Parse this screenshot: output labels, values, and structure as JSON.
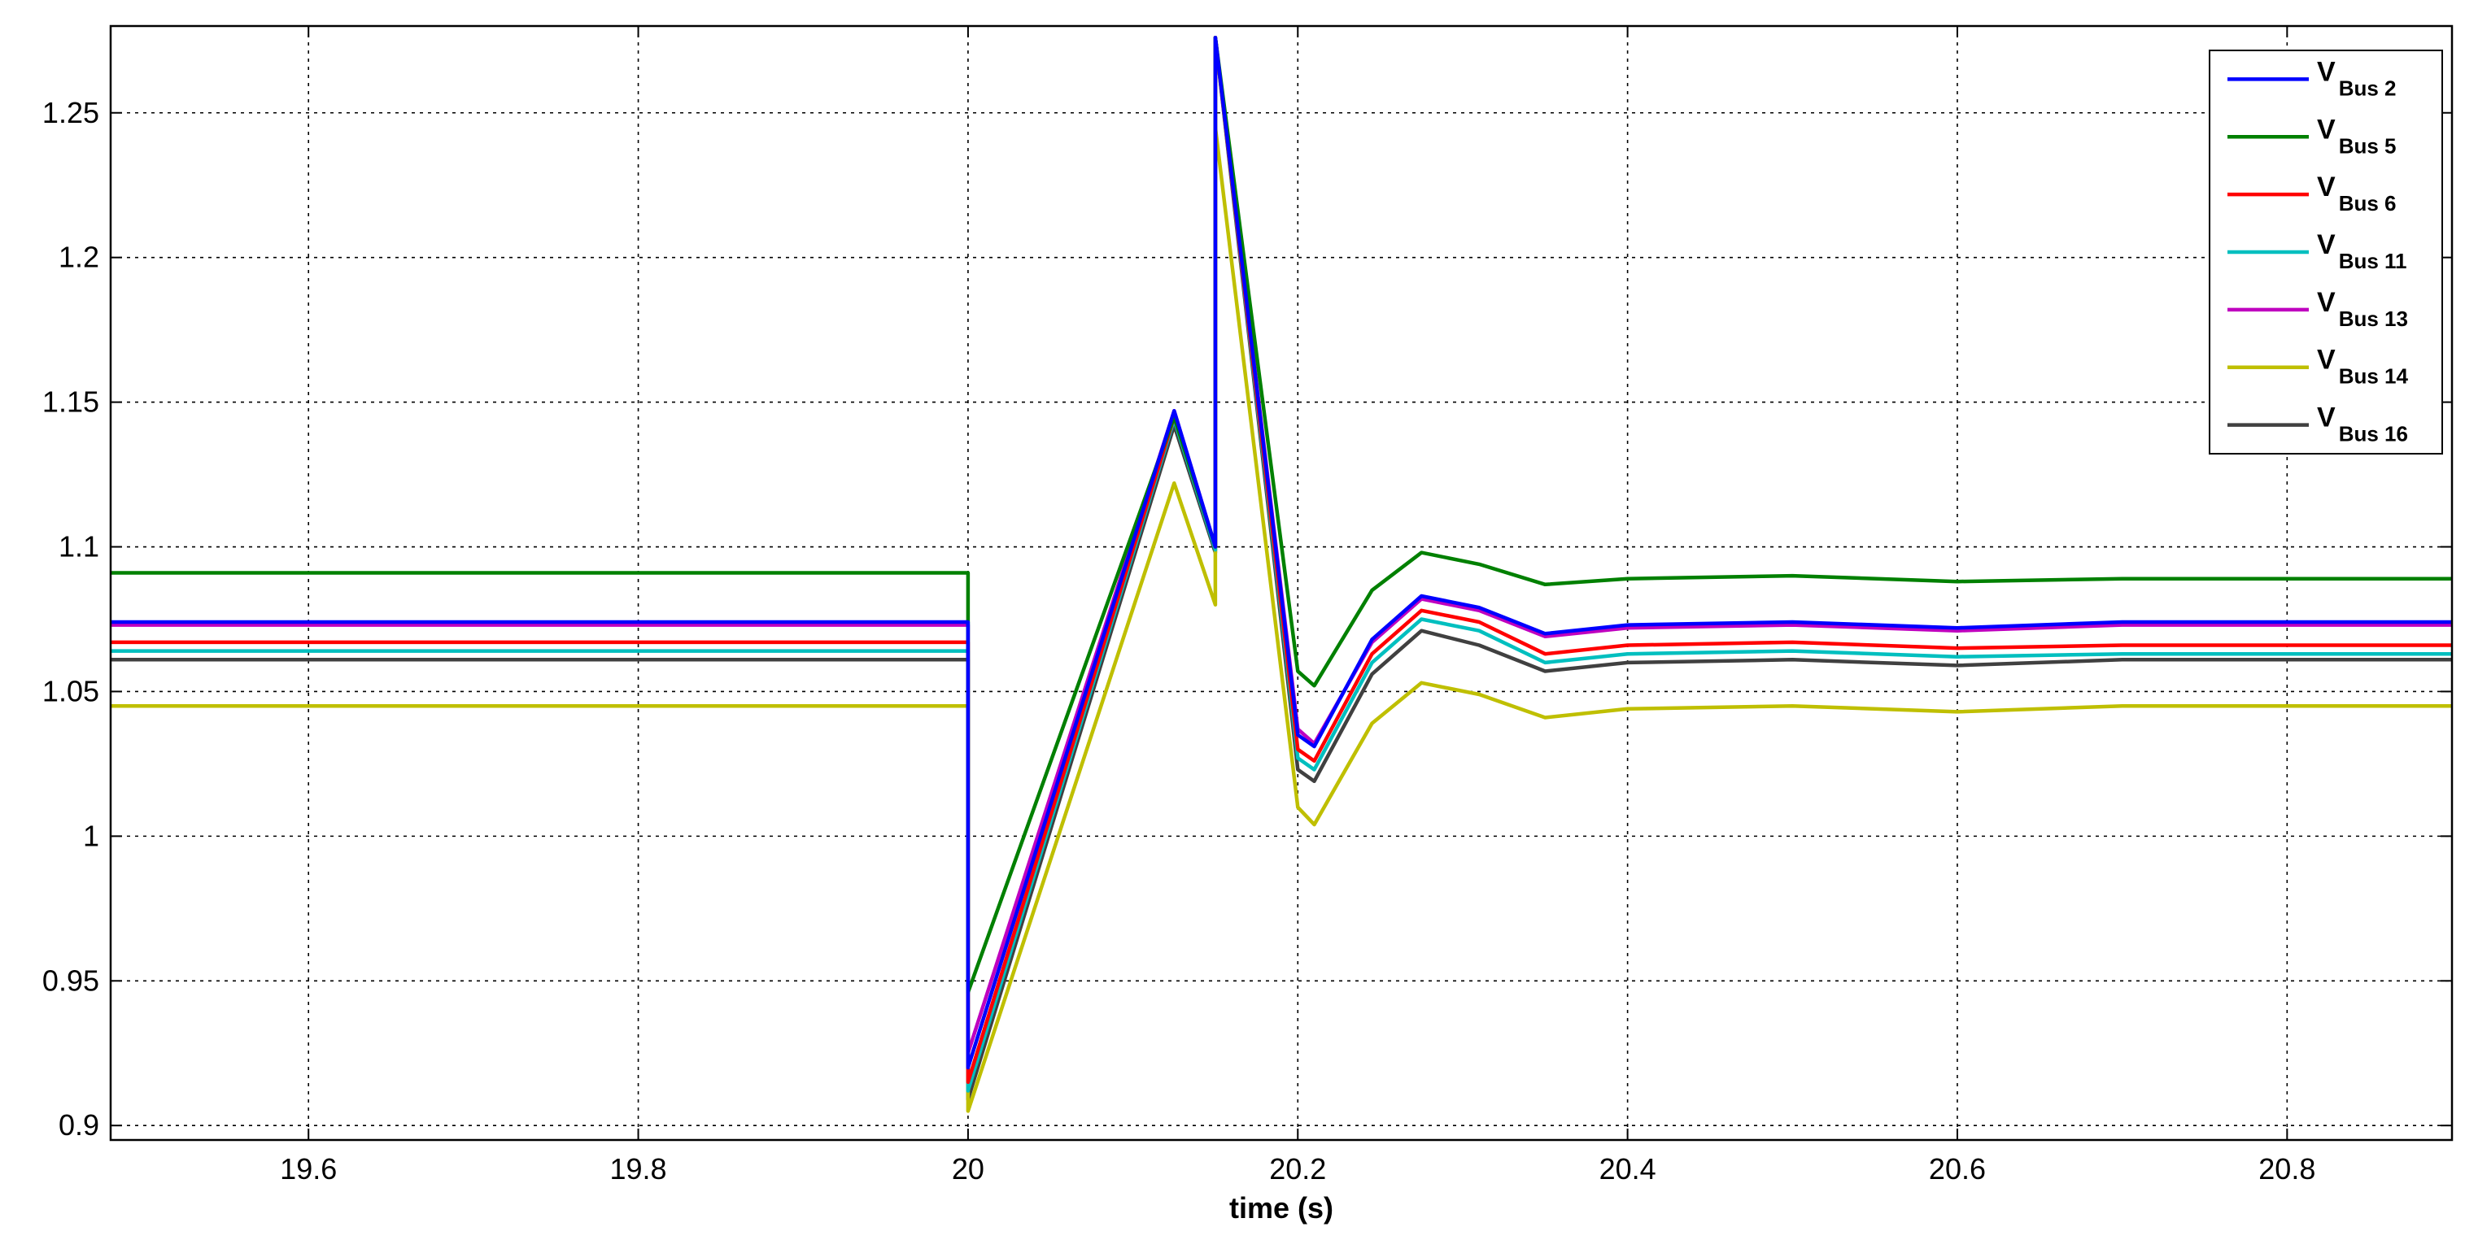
{
  "chart_data": {
    "type": "line",
    "title": "",
    "xlabel": "time (s)",
    "ylabel": "",
    "xlim": [
      19.48,
      20.9
    ],
    "ylim": [
      0.895,
      1.28
    ],
    "grid": true,
    "grid_style": "dotted",
    "legend_position": "top-right",
    "x_ticks": [
      19.6,
      19.8,
      20,
      20.2,
      20.4,
      20.6,
      20.8
    ],
    "x_tick_labels": [
      "19.6",
      "19.8",
      "20",
      "20.2",
      "20.4",
      "20.6",
      "20.8"
    ],
    "y_ticks": [
      0.9,
      0.95,
      1,
      1.05,
      1.1,
      1.15,
      1.2,
      1.25
    ],
    "y_tick_labels": [
      "0.9",
      "0.95",
      "1",
      "1.05",
      "1.1",
      "1.15",
      "1.2",
      "1.25"
    ],
    "series": [
      {
        "name_main": "V",
        "name_sub": "Bus 2",
        "color": "#0000ff",
        "x": [
          19.48,
          20.0,
          20.0,
          20.125,
          20.15,
          20.15,
          20.2,
          20.21,
          20.245,
          20.275,
          20.31,
          20.35,
          20.4,
          20.5,
          20.6,
          20.7,
          20.8,
          20.9
        ],
        "y": [
          1.074,
          1.074,
          0.92,
          1.147,
          1.1,
          1.276,
          1.035,
          1.031,
          1.068,
          1.083,
          1.079,
          1.07,
          1.073,
          1.074,
          1.072,
          1.074,
          1.074,
          1.074
        ]
      },
      {
        "name_main": "V",
        "name_sub": "Bus 5",
        "color": "#008000",
        "x": [
          19.48,
          20.0,
          20.0,
          20.125,
          20.15,
          20.15,
          20.2,
          20.21,
          20.245,
          20.275,
          20.31,
          20.35,
          20.4,
          20.5,
          20.6,
          20.7,
          20.8,
          20.9
        ],
        "y": [
          1.091,
          1.091,
          0.946,
          1.145,
          1.1,
          1.276,
          1.057,
          1.052,
          1.085,
          1.098,
          1.094,
          1.087,
          1.089,
          1.09,
          1.088,
          1.089,
          1.089,
          1.089
        ]
      },
      {
        "name_main": "V",
        "name_sub": "Bus 6",
        "color": "#ff0000",
        "x": [
          19.48,
          20.0,
          20.0,
          20.125,
          20.15,
          20.15,
          20.2,
          20.21,
          20.245,
          20.275,
          20.31,
          20.35,
          20.4,
          20.5,
          20.6,
          20.7,
          20.8,
          20.9
        ],
        "y": [
          1.067,
          1.067,
          0.915,
          1.145,
          1.1,
          1.276,
          1.03,
          1.026,
          1.063,
          1.078,
          1.074,
          1.063,
          1.066,
          1.067,
          1.065,
          1.066,
          1.066,
          1.066
        ]
      },
      {
        "name_main": "V",
        "name_sub": "Bus 11",
        "color": "#00bfbf",
        "x": [
          19.48,
          20.0,
          20.0,
          20.125,
          20.15,
          20.15,
          20.2,
          20.21,
          20.245,
          20.275,
          20.31,
          20.35,
          20.4,
          20.5,
          20.6,
          20.7,
          20.8,
          20.9
        ],
        "y": [
          1.064,
          1.064,
          0.912,
          1.144,
          1.099,
          1.276,
          1.027,
          1.023,
          1.06,
          1.075,
          1.071,
          1.06,
          1.063,
          1.064,
          1.062,
          1.063,
          1.063,
          1.063
        ]
      },
      {
        "name_main": "V",
        "name_sub": "Bus 13",
        "color": "#bf00bf",
        "x": [
          19.48,
          20.0,
          20.0,
          20.125,
          20.15,
          20.15,
          20.2,
          20.21,
          20.245,
          20.275,
          20.31,
          20.35,
          20.4,
          20.5,
          20.6,
          20.7,
          20.8,
          20.9
        ],
        "y": [
          1.073,
          1.073,
          0.925,
          1.147,
          1.1,
          1.276,
          1.037,
          1.032,
          1.067,
          1.082,
          1.078,
          1.069,
          1.072,
          1.073,
          1.071,
          1.073,
          1.073,
          1.073
        ]
      },
      {
        "name_main": "V",
        "name_sub": "Bus 14",
        "color": "#bfbf00",
        "x": [
          19.48,
          20.0,
          20.0,
          20.125,
          20.15,
          20.15,
          20.2,
          20.21,
          20.245,
          20.275,
          20.31,
          20.35,
          20.4,
          20.5,
          20.6,
          20.7,
          20.8,
          20.9
        ],
        "y": [
          1.045,
          1.045,
          0.905,
          1.122,
          1.08,
          1.245,
          1.01,
          1.004,
          1.039,
          1.053,
          1.049,
          1.041,
          1.044,
          1.045,
          1.043,
          1.045,
          1.045,
          1.045
        ]
      },
      {
        "name_main": "V",
        "name_sub": "Bus 16",
        "color": "#404040",
        "x": [
          19.48,
          20.0,
          20.0,
          20.125,
          20.15,
          20.15,
          20.2,
          20.21,
          20.245,
          20.275,
          20.31,
          20.35,
          20.4,
          20.5,
          20.6,
          20.7,
          20.8,
          20.9
        ],
        "y": [
          1.061,
          1.061,
          0.909,
          1.142,
          1.098,
          1.276,
          1.023,
          1.019,
          1.056,
          1.071,
          1.066,
          1.057,
          1.06,
          1.061,
          1.059,
          1.061,
          1.061,
          1.061
        ]
      }
    ]
  }
}
